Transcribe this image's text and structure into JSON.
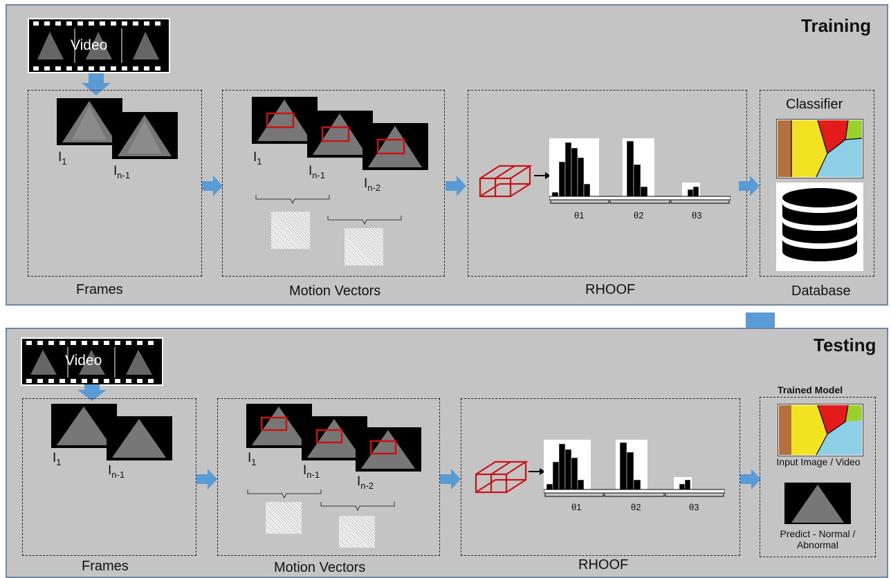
{
  "training": {
    "heading": "Training",
    "video_label": "Video",
    "frames_label": "Frames",
    "motion_label": "Motion Vectors",
    "rhoof_label": "RHOOF",
    "classifier_label": "Classifier",
    "database_label": "Database",
    "frame_subs": [
      "1",
      "n-1",
      "n-2"
    ],
    "theta": [
      "θ1",
      "θ2",
      "θ3"
    ]
  },
  "testing": {
    "heading": "Testing",
    "video_label": "Video",
    "frames_label": "Frames",
    "motion_label": "Motion Vectors",
    "rhoof_label": "RHOOF",
    "trained_model_label": "Trained Model",
    "input_label": "Input Image / Video",
    "predict_label": "Predict - Normal / Abnormal",
    "theta": [
      "θ1",
      "θ2",
      "θ3"
    ]
  },
  "frame_letter": "I",
  "colors": {
    "panel": "#c4c4c4",
    "arrow": "#5b9bd5",
    "roi": "#cc1111"
  }
}
